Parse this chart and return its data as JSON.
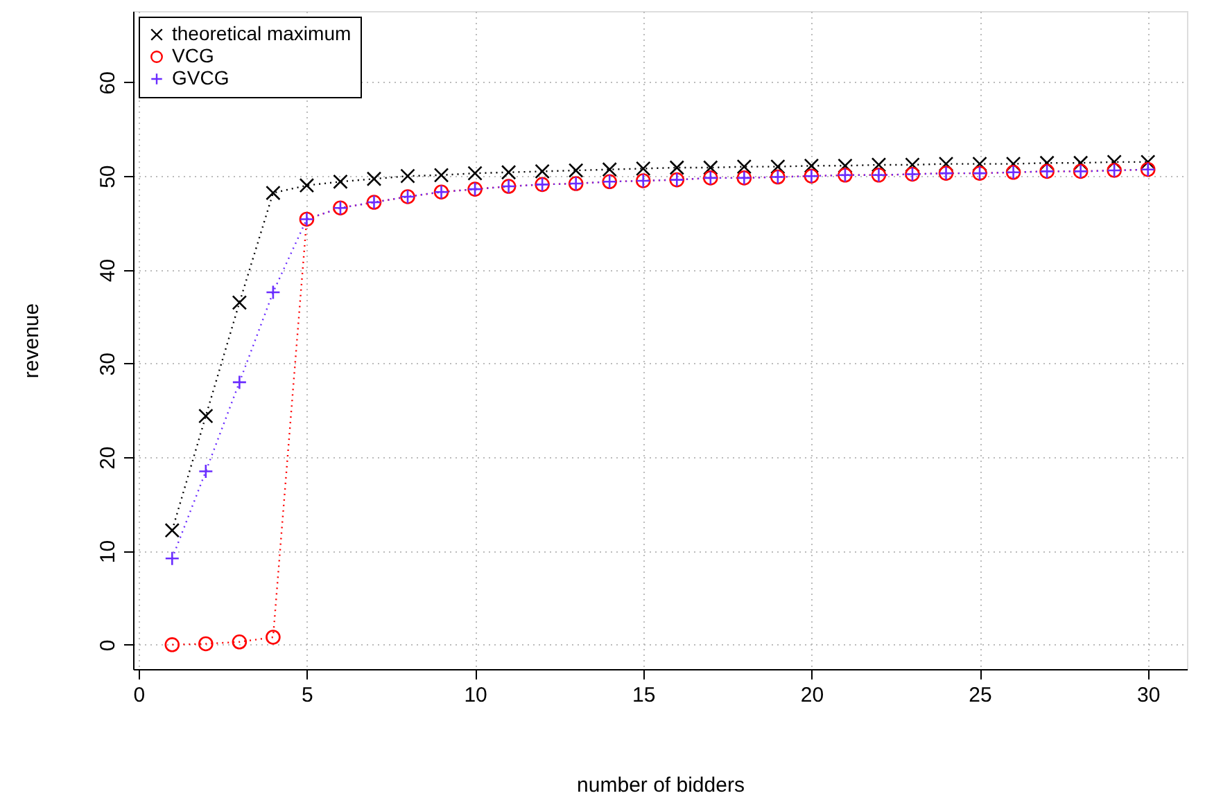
{
  "chart_data": {
    "type": "line",
    "xlabel": "number of bidders",
    "ylabel": "revenue",
    "x": [
      1,
      2,
      3,
      4,
      5,
      6,
      7,
      8,
      9,
      10,
      11,
      12,
      13,
      14,
      15,
      16,
      17,
      18,
      19,
      20,
      21,
      22,
      23,
      24,
      25,
      26,
      27,
      28,
      29,
      30
    ],
    "xlim": [
      -0.16,
      31.16
    ],
    "xticks": [
      0,
      5,
      10,
      15,
      20,
      25,
      30
    ],
    "ylim": [
      -2.6,
      67.6
    ],
    "yticks": [
      0,
      10,
      20,
      30,
      40,
      50,
      60
    ],
    "grid": true,
    "legend": "top left",
    "line_style": "dotted",
    "series": [
      {
        "name": "theoretical maximum",
        "color": "#000000",
        "marker": "x",
        "values": [
          12.2,
          24.4,
          36.5,
          48.2,
          49.0,
          49.4,
          49.7,
          50.0,
          50.1,
          50.3,
          50.4,
          50.5,
          50.6,
          50.7,
          50.8,
          50.9,
          50.9,
          51.0,
          51.0,
          51.1,
          51.1,
          51.2,
          51.2,
          51.3,
          51.3,
          51.3,
          51.4,
          51.4,
          51.5,
          51.5
        ]
      },
      {
        "name": "VCG",
        "color": "#ff0000",
        "marker": "circle",
        "values": [
          0.0,
          0.1,
          0.3,
          0.8,
          45.4,
          46.6,
          47.2,
          47.8,
          48.3,
          48.6,
          48.9,
          49.1,
          49.2,
          49.4,
          49.5,
          49.6,
          49.8,
          49.8,
          49.9,
          50.0,
          50.1,
          50.1,
          50.2,
          50.3,
          50.3,
          50.4,
          50.5,
          50.5,
          50.6,
          50.7
        ]
      },
      {
        "name": "GVCG",
        "color": "#6a2cff",
        "marker": "cross",
        "values": [
          9.2,
          18.5,
          28.0,
          37.6,
          45.4,
          46.6,
          47.2,
          47.8,
          48.3,
          48.6,
          48.9,
          49.1,
          49.2,
          49.4,
          49.5,
          49.6,
          49.8,
          49.8,
          49.9,
          50.0,
          50.1,
          50.1,
          50.2,
          50.3,
          50.3,
          50.4,
          50.5,
          50.5,
          50.6,
          50.7
        ]
      }
    ]
  }
}
